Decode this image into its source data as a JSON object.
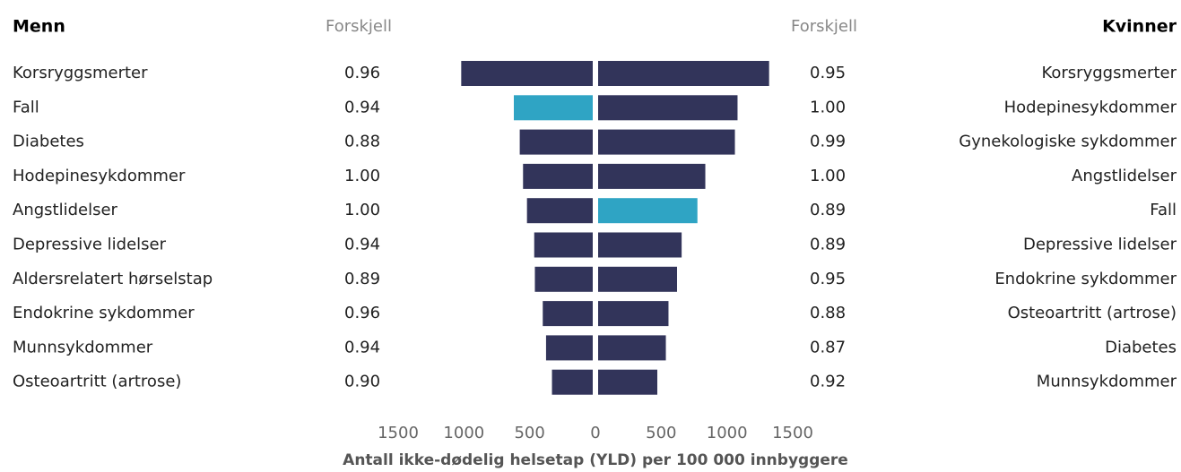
{
  "chart_data": [
    {
      "type": "bar",
      "direction": "left",
      "title": "Menn",
      "difference_title": "Forskjell",
      "categories": [
        "Korsryggsmerter",
        "Fall",
        "Diabetes",
        "Hodepinesykdommer",
        "Angstlidelser",
        "Depressive lidelser",
        "Aldersrelatert hørselstap",
        "Endokrine sykdommer",
        "Munnsykdommer",
        "Osteoartritt (artrose)"
      ],
      "values": [
        1000,
        600,
        555,
        530,
        500,
        445,
        440,
        380,
        355,
        310
      ],
      "colors": [
        "#32345a",
        "#2fa4c4",
        "#32345a",
        "#32345a",
        "#32345a",
        "#32345a",
        "#32345a",
        "#32345a",
        "#32345a",
        "#32345a"
      ],
      "differences": [
        0.96,
        0.94,
        0.88,
        1,
        1,
        0.94,
        0.89,
        0.96,
        0.94,
        0.9
      ],
      "difference_labels": [
        "0.96",
        "0.94",
        "0.88",
        "1.00",
        "1.00",
        "0.94",
        "0.89",
        "0.96",
        "0.94",
        "0.90"
      ],
      "xlim": [
        0,
        1500
      ],
      "xticks": [
        0,
        500,
        1000,
        1500
      ],
      "xlabel": "Antall ikke-dødelig helsetap (YLD) per 100 000 innbyggere"
    },
    {
      "type": "bar",
      "direction": "right",
      "title": "Kvinner",
      "difference_title": "Forskjell",
      "categories": [
        "Korsryggsmerter",
        "Hodepinesykdommer",
        "Gynekologiske sykdommer",
        "Angstlidelser",
        "Fall",
        "Depressive lidelser",
        "Endokrine sykdommer",
        "Osteoartritt (artrose)",
        "Diabetes",
        "Munnsykdommer"
      ],
      "values": [
        1300,
        1060,
        1040,
        815,
        755,
        635,
        600,
        535,
        515,
        450
      ],
      "colors": [
        "#32345a",
        "#32345a",
        "#32345a",
        "#32345a",
        "#2fa4c4",
        "#32345a",
        "#32345a",
        "#32345a",
        "#32345a",
        "#32345a"
      ],
      "differences": [
        0.95,
        1,
        0.99,
        1,
        0.89,
        0.89,
        0.95,
        0.88,
        0.87,
        0.92
      ],
      "difference_labels": [
        "0.95",
        "1.00",
        "0.99",
        "1.00",
        "0.89",
        "0.89",
        "0.95",
        "0.88",
        "0.87",
        "0.92"
      ],
      "xlim": [
        0,
        1500
      ],
      "xticks": [
        500,
        1000,
        1500
      ]
    }
  ]
}
